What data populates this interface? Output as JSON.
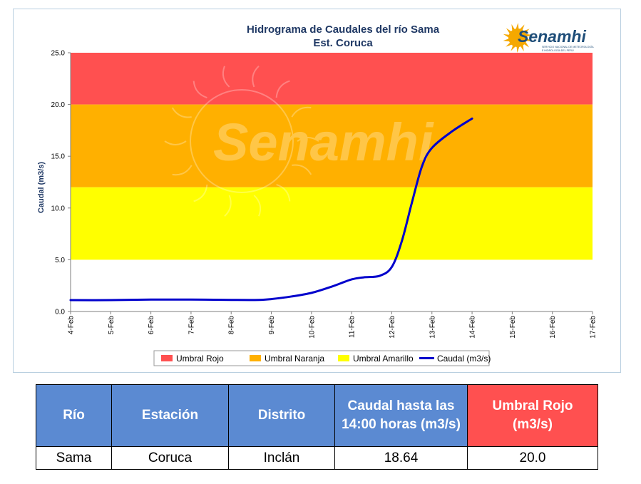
{
  "chart_data": {
    "type": "line",
    "title": "Hidrograma de Caudales del río Sama",
    "subtitle": "Est. Coruca",
    "xlabel": "",
    "ylabel": "Caudal (m3/s)",
    "x_ticks": [
      "4-Feb",
      "5-Feb",
      "6-Feb",
      "7-Feb",
      "8-Feb",
      "9-Feb",
      "10-Feb",
      "11-Feb",
      "12-Feb",
      "13-Feb",
      "14-Feb",
      "15-Feb",
      "16-Feb",
      "17-Feb"
    ],
    "y_ticks": [
      "0.0",
      "5.0",
      "10.0",
      "15.0",
      "20.0",
      "25.0"
    ],
    "xlim": [
      0,
      13
    ],
    "ylim": [
      0,
      25
    ],
    "thresholds": [
      {
        "name": "Umbral Rojo",
        "from": 20,
        "to": 25,
        "color": "#ff5050"
      },
      {
        "name": "Umbral Naranja",
        "from": 12,
        "to": 20,
        "color": "#ffb000"
      },
      {
        "name": "Umbral Amarillo",
        "from": 5,
        "to": 12,
        "color": "#ffff00"
      }
    ],
    "series": [
      {
        "name": "Caudal (m3/s)",
        "color": "#0000cc",
        "points": [
          [
            0,
            1.1
          ],
          [
            1,
            1.1
          ],
          [
            2,
            1.15
          ],
          [
            3,
            1.15
          ],
          [
            4,
            1.12
          ],
          [
            4.7,
            1.12
          ],
          [
            5,
            1.2
          ],
          [
            5.5,
            1.45
          ],
          [
            6,
            1.8
          ],
          [
            6.5,
            2.4
          ],
          [
            7,
            3.1
          ],
          [
            7.3,
            3.3
          ],
          [
            7.7,
            3.45
          ],
          [
            8,
            4.3
          ],
          [
            8.25,
            6.8
          ],
          [
            8.5,
            10.5
          ],
          [
            8.75,
            14.0
          ],
          [
            9,
            15.8
          ],
          [
            9.5,
            17.4
          ],
          [
            10,
            18.64
          ]
        ]
      }
    ],
    "legend": [
      "Umbral Rojo",
      "Umbral Naranja",
      "Umbral Amarillo",
      "Caudal (m3/s)"
    ],
    "legend_position": "bottom",
    "grid": false,
    "watermark": "Senamhi"
  },
  "logo": {
    "name": "Senamhi",
    "tagline_1": "SERVICIO NACIONAL DE METEOROLOGÍA",
    "tagline_2": "E HIDROLOGÍA DEL PERÚ"
  },
  "table": {
    "headers": [
      "Río",
      "Estación",
      "Distrito",
      "Caudal hasta las 14:00 horas (m3/s)",
      "Umbral  Rojo (m3/s)"
    ],
    "header_colors": [
      "#5b8ad2",
      "#5b8ad2",
      "#5b8ad2",
      "#5b8ad2",
      "#ff5050"
    ],
    "rows": [
      [
        "Sama",
        "Coruca",
        "Inclán",
        "18.64",
        "20.0"
      ]
    ]
  }
}
